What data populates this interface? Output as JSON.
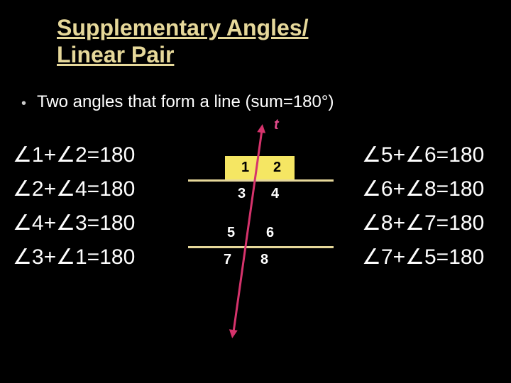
{
  "title_line1": "Supplementary Angles/",
  "title_line2": "Linear Pair",
  "subtitle": "Two angles that form a line (sum=180°)",
  "bullet_char": "•",
  "left_equations": [
    "∠1+∠2=180",
    "∠2+∠4=180",
    "∠4+∠3=180",
    "∠3+∠1=180"
  ],
  "right_equations": [
    "∠5+∠6=180",
    "∠6+∠8=180",
    "∠8+∠7=180",
    "∠7+∠5=180"
  ],
  "diagram": {
    "t_label": "t",
    "nums": {
      "n1": "1",
      "n2": "2",
      "n3": "3",
      "n4": "4",
      "n5": "5",
      "n6": "6",
      "n7": "7",
      "n8": "8"
    },
    "line_color": "#e6d89a",
    "transversal_color": "#d6336c",
    "highlight_color": "#f5e663"
  },
  "colors": {
    "background": "#000000",
    "title": "#e6d89a",
    "text": "#ffffff"
  }
}
